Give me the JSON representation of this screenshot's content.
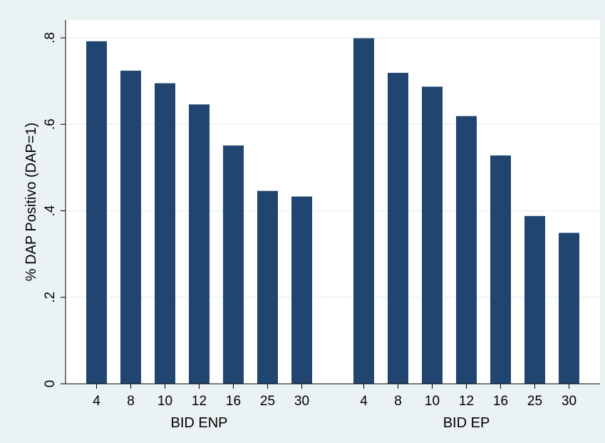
{
  "chart_data": {
    "type": "bar",
    "title": "",
    "ylabel": "% DAP Positivo (DAP=1)",
    "ylim": [
      0,
      0.8
    ],
    "yticks": [
      {
        "value": 0,
        "label": "0"
      },
      {
        "value": 0.2,
        "label": ".2"
      },
      {
        "value": 0.4,
        "label": ".4"
      },
      {
        "value": 0.6,
        "label": ".6"
      },
      {
        "value": 0.8,
        "label": ".8"
      }
    ],
    "grid": true,
    "groups": [
      {
        "label": "BID ENP",
        "categories": [
          "4",
          "8",
          "10",
          "12",
          "16",
          "25",
          "30"
        ],
        "values": [
          0.792,
          0.724,
          0.695,
          0.646,
          0.551,
          0.446,
          0.433
        ]
      },
      {
        "label": "BID EP",
        "categories": [
          "4",
          "8",
          "10",
          "12",
          "16",
          "25",
          "30"
        ],
        "values": [
          0.799,
          0.719,
          0.687,
          0.619,
          0.528,
          0.388,
          0.349
        ]
      }
    ],
    "colors": {
      "bar": "#1f4570",
      "background": "#eaf2f3",
      "plot_background": "#ffffff",
      "grid": "#eaf2f3"
    }
  }
}
